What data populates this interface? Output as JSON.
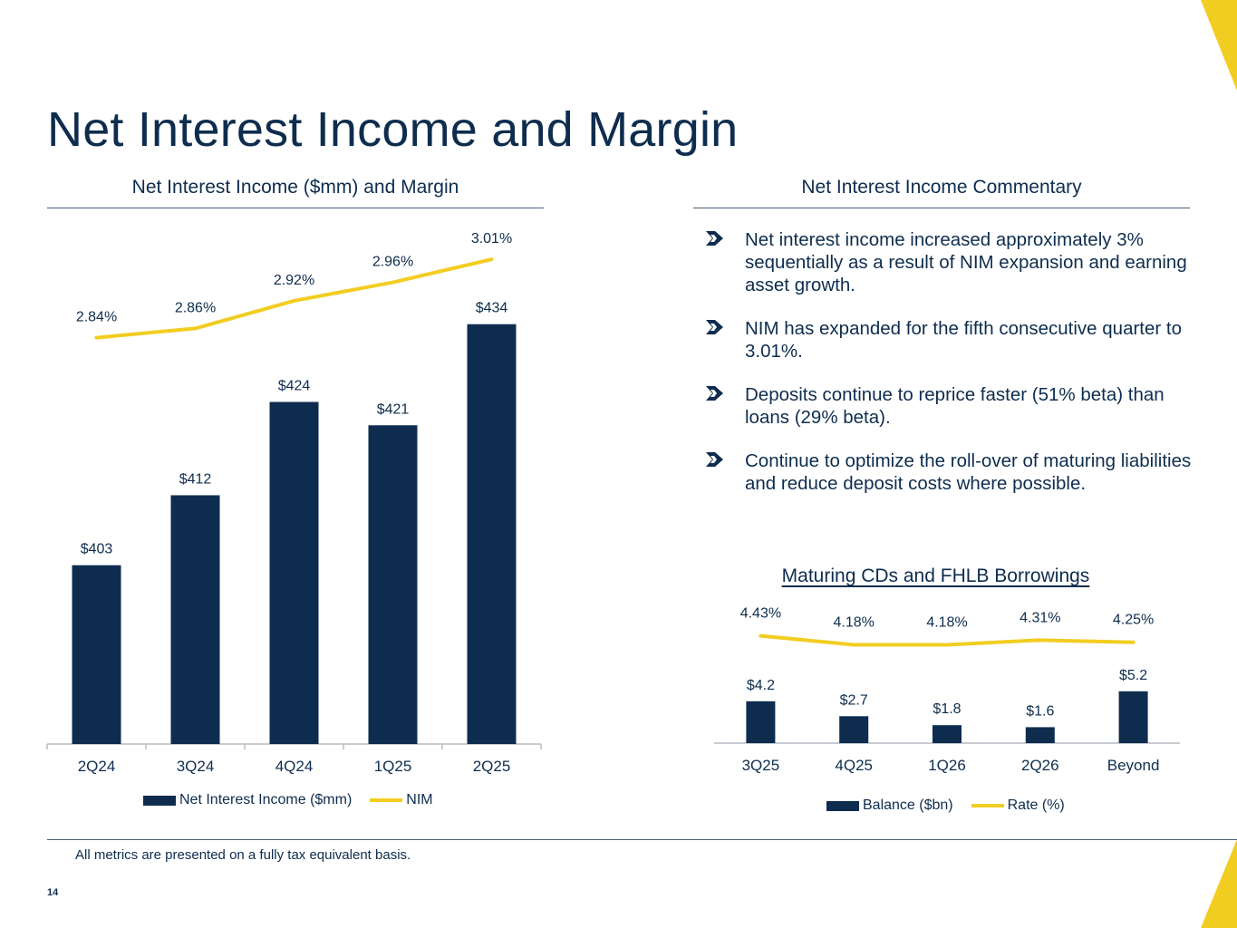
{
  "page": {
    "title": "Net Interest Income and Margin",
    "footnote": "All metrics are presented on a fully tax equivalent basis.",
    "page_number": "14"
  },
  "colors": {
    "navy": "#0e2d4e",
    "gold": "#f2cd21",
    "axis": "#b6bcc4"
  },
  "left_panel": {
    "heading": "Net Interest Income ($mm) and Margin"
  },
  "right_panel": {
    "heading": "Net Interest Income Commentary",
    "bullets": [
      "Net interest income increased approximately 3% sequentially as a result of NIM expansion and earning asset growth.",
      "NIM has expanded for the fifth consecutive quarter to 3.01%.",
      "Deposits continue to reprice faster (51% beta) than loans (29% beta).",
      "Continue to optimize the roll-over of maturing liabilities and reduce deposit costs where possible."
    ]
  },
  "chart_data": [
    {
      "type": "bar",
      "title": "Net Interest Income ($mm) and Margin",
      "categories": [
        "2Q24",
        "3Q24",
        "4Q24",
        "1Q25",
        "2Q25"
      ],
      "series": [
        {
          "name": "Net Interest Income ($mm)",
          "type": "bar",
          "values": [
            403,
            412,
            424,
            421,
            434
          ],
          "labels": [
            "$403",
            "$412",
            "$424",
            "$421",
            "$434"
          ]
        },
        {
          "name": "NIM",
          "type": "line",
          "values": [
            2.84,
            2.86,
            2.92,
            2.96,
            3.01
          ],
          "labels": [
            "2.84%",
            "2.86%",
            "2.92%",
            "2.96%",
            "3.01%"
          ]
        }
      ],
      "bar_ylim": [
        380,
        437
      ],
      "line_ylim": [
        2.55,
        3.03
      ],
      "legend": [
        "Net Interest Income ($mm)",
        "NIM"
      ],
      "legend_position": "bottom"
    },
    {
      "type": "bar",
      "title": "Maturing CDs and FHLB Borrowings",
      "categories": [
        "3Q25",
        "4Q25",
        "1Q26",
        "2Q26",
        "Beyond"
      ],
      "series": [
        {
          "name": "Balance ($bn)",
          "type": "bar",
          "values": [
            4.2,
            2.7,
            1.8,
            1.6,
            5.2
          ],
          "labels": [
            "$4.2",
            "$2.7",
            "$1.8",
            "$1.6",
            "$5.2"
          ]
        },
        {
          "name": "Rate (%)",
          "type": "line",
          "values": [
            4.43,
            4.18,
            4.18,
            4.31,
            4.25
          ],
          "labels": [
            "4.43%",
            "4.18%",
            "4.18%",
            "4.31%",
            "4.25%"
          ]
        }
      ],
      "bar_ylim": [
        0,
        14
      ],
      "line_ylim": [
        2.5,
        5.0
      ],
      "legend": [
        "Balance ($bn)",
        "Rate (%)"
      ],
      "legend_position": "bottom"
    }
  ]
}
